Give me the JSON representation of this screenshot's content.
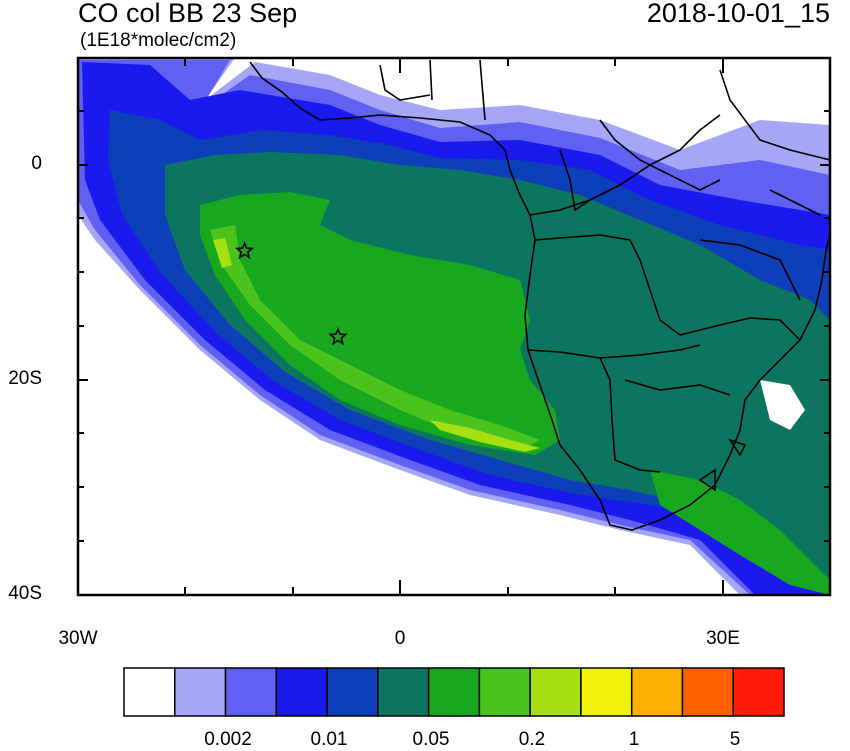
{
  "title": "CO col BB 23 Sep",
  "units": "(1E18*molec/cm2)",
  "timestamp": "2018-10-01_15",
  "y_ticks": [
    "0",
    "20S",
    "40S"
  ],
  "x_ticks": [
    "30W",
    "0",
    "30E"
  ],
  "colorbar": {
    "colors": [
      "#ffffff",
      "#a6a6f7",
      "#6060f2",
      "#1a1aee",
      "#0d3fb8",
      "#0c7560",
      "#18a820",
      "#4ac41c",
      "#a6e012",
      "#f2f20a",
      "#fdb000",
      "#fd6000",
      "#ff1a0a"
    ],
    "labels": [
      "0.002",
      "0.01",
      "0.05",
      "0.2",
      "1",
      "5"
    ]
  },
  "markers": [
    {
      "name": "star-marker-1",
      "lon": -14.5,
      "lat": -8.0
    },
    {
      "name": "star-marker-2",
      "lon": -5.8,
      "lat": -16.0
    }
  ]
}
